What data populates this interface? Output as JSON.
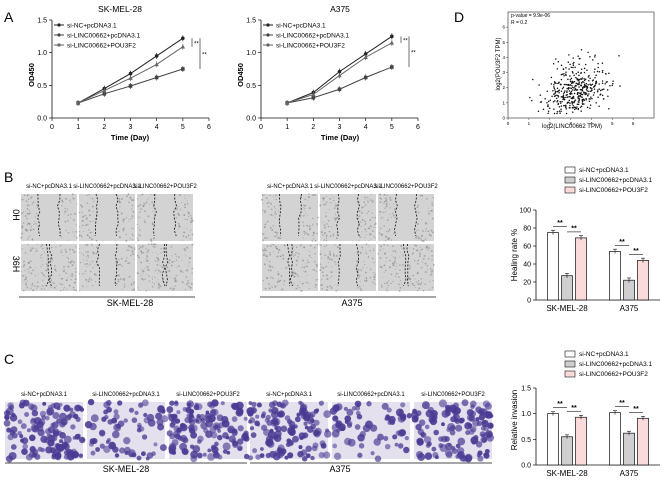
{
  "panels": {
    "A": "A",
    "B": "B",
    "C": "C",
    "D": "D"
  },
  "colors": {
    "ctrl": "#222222",
    "kd": "#444444",
    "rescue": "#666666",
    "bar_ctrl": "#ffffff",
    "bar_kd": "#cfcfcf",
    "bar_rescue": "#fadada",
    "purple": "#4b3a93",
    "well": "#d3d3d3"
  },
  "treatments": [
    "si-NC+pcDNA3.1",
    "si-LINC00662+pcDNA3.1",
    "si-LINC00662+POU3F2"
  ],
  "cell_lines": [
    "SK-MEL-28",
    "A375"
  ],
  "sig": "**",
  "wound": {
    "times": [
      "0H",
      "36H"
    ]
  },
  "chart_data": [
    {
      "type": "line",
      "title": "SK-MEL-28",
      "xlabel": "Time (Day)",
      "ylabel": "OD450",
      "x": [
        1,
        2,
        3,
        4,
        5
      ],
      "xlim": [
        0,
        6
      ],
      "ylim": [
        0,
        1.5
      ],
      "xticks": [
        "0",
        "1",
        "2",
        "3",
        "4",
        "5",
        "6"
      ],
      "yticks": [
        "0.0",
        "0.5",
        "1.0",
        "1.5"
      ],
      "series": [
        {
          "name": "si-NC+pcDNA3.1",
          "marker": "circle",
          "values": [
            0.23,
            0.45,
            0.68,
            0.95,
            1.22
          ]
        },
        {
          "name": "si-LINC00662+pcDNA3.1",
          "marker": "square",
          "values": [
            0.23,
            0.37,
            0.49,
            0.62,
            0.75
          ]
        },
        {
          "name": "si-LINC00662+POU3F2",
          "marker": "triangle",
          "values": [
            0.23,
            0.42,
            0.61,
            0.82,
            1.09
          ]
        }
      ],
      "annotations": [
        "**",
        "**"
      ]
    },
    {
      "type": "line",
      "title": "A375",
      "xlabel": "Time (Day)",
      "ylabel": "OD450",
      "x": [
        1,
        2,
        3,
        4,
        5
      ],
      "xlim": [
        0,
        6
      ],
      "ylim": [
        0,
        1.5
      ],
      "xticks": [
        "0",
        "1",
        "2",
        "3",
        "4",
        "5",
        "6"
      ],
      "yticks": [
        "0.0",
        "0.5",
        "1.0",
        "1.5"
      ],
      "series": [
        {
          "name": "si-NC+pcDNA3.1",
          "marker": "circle",
          "values": [
            0.23,
            0.39,
            0.71,
            0.98,
            1.25
          ]
        },
        {
          "name": "si-LINC00662+pcDNA3.1",
          "marker": "square",
          "values": [
            0.23,
            0.31,
            0.44,
            0.62,
            0.78
          ]
        },
        {
          "name": "si-LINC00662+POU3F2",
          "marker": "triangle",
          "values": [
            0.23,
            0.36,
            0.65,
            0.93,
            1.15
          ]
        }
      ],
      "annotations": [
        "**",
        "**"
      ]
    },
    {
      "type": "bar",
      "ylabel": "Healing rate %",
      "ylim": [
        0,
        100
      ],
      "yticks": [
        "0",
        "20",
        "40",
        "60",
        "80",
        "100"
      ],
      "categories": [
        "SK-MEL-28",
        "A375"
      ],
      "series": [
        {
          "name": "si-NC+pcDNA3.1",
          "values": [
            75,
            54
          ]
        },
        {
          "name": "si-LINC00662+pcDNA3.1",
          "values": [
            27,
            22
          ]
        },
        {
          "name": "si-LINC00662+POU3F2",
          "values": [
            69,
            44
          ]
        }
      ],
      "annotations": [
        "**",
        "**",
        "**",
        "**"
      ]
    },
    {
      "type": "bar",
      "ylabel": "Relative invasion",
      "ylim": [
        0,
        1.5
      ],
      "yticks": [
        "0.0",
        "0.5",
        "1.0",
        "1.5"
      ],
      "categories": [
        "SK-MEL-28",
        "A375"
      ],
      "series": [
        {
          "name": "si-NC+pcDNA3.1",
          "values": [
            1.0,
            1.02
          ]
        },
        {
          "name": "si-LINC00662+pcDNA3.1",
          "values": [
            0.55,
            0.62
          ]
        },
        {
          "name": "si-LINC00662+POU3F2",
          "values": [
            0.93,
            0.91
          ]
        }
      ],
      "annotations": [
        "**",
        "**",
        "**",
        "**"
      ]
    },
    {
      "type": "scatter",
      "xlabel": "log2(LINC00662 TPM)",
      "ylabel": "log2(POU3F2 TPM)",
      "stats": [
        "p-value = 9.9e-06",
        "R = 0.2"
      ],
      "xlim": [
        0,
        7
      ],
      "ylim": [
        0,
        7
      ],
      "xticks": [
        "0",
        "1",
        "2",
        "3",
        "4",
        "5",
        "6"
      ],
      "yticks": [
        "0",
        "1",
        "2",
        "3",
        "4",
        "5",
        "6"
      ],
      "n_points": 420
    }
  ]
}
